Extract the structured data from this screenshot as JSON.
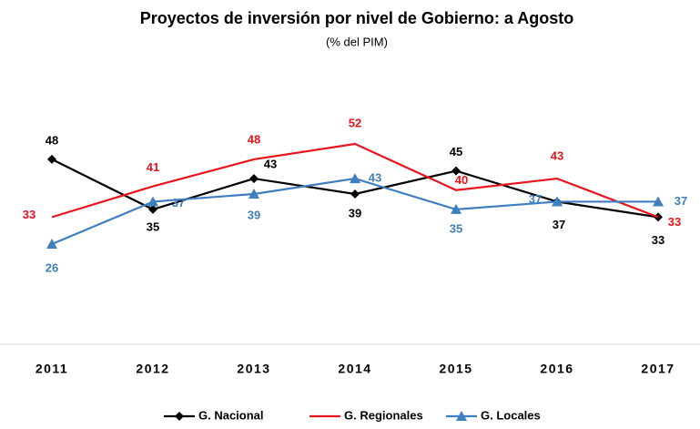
{
  "chart_data": {
    "type": "line",
    "title": "Proyectos de inversión por nivel de Gobierno: a Agosto",
    "subtitle": "(% del PIM)",
    "categories": [
      "2011",
      "2012",
      "2013",
      "2014",
      "2015",
      "2016",
      "2017"
    ],
    "ylim": [
      0,
      65
    ],
    "series": [
      {
        "name": "G. Nacional",
        "color": "#000000",
        "marker": "diamond",
        "values": [
          48,
          35,
          43,
          39,
          45,
          37,
          33
        ]
      },
      {
        "name": "G. Regionales",
        "color": "#e8131b",
        "marker": "none",
        "values": [
          33,
          41,
          48,
          52,
          40,
          43,
          33
        ]
      },
      {
        "name": "G. Locales",
        "color": "#3f7fbf",
        "marker": "triangle",
        "values": [
          26,
          37,
          39,
          43,
          35,
          37,
          37
        ]
      }
    ]
  }
}
